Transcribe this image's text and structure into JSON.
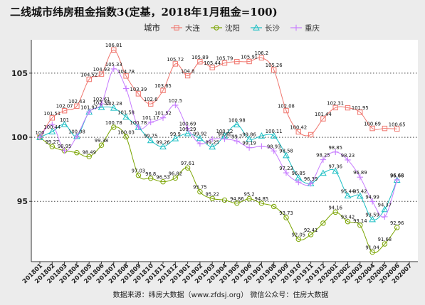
{
  "chart_data": {
    "type": "line",
    "title": "二线城市纬房租金指数3(定基，2018年1月租金=100)",
    "caption": "数据来源：纬房大数据（www.zfdsj.org）    微信公众号：住房大数据",
    "legend_title": "城市",
    "legend_position": "top",
    "grid": true,
    "ylim": [
      90.3,
      107.6
    ],
    "yticks": [
      95,
      100,
      105
    ],
    "x": [
      "201801",
      "201802",
      "201803",
      "201804",
      "201805",
      "201806",
      "201807",
      "201808",
      "201809",
      "201810",
      "201811",
      "201812",
      "201901",
      "201902",
      "201903",
      "201904",
      "201905",
      "201906",
      "201907",
      "201908",
      "201909",
      "201910",
      "201911",
      "201912",
      "202001",
      "202002",
      "202003",
      "202004",
      "202005",
      "202006",
      "202007"
    ],
    "series": [
      {
        "name": "大连",
        "color": "#f0776f",
        "marker": "square",
        "values": [
          100,
          101.51,
          102.07,
          102.43,
          104.52,
          104.93,
          106.81,
          104.78,
          103.39,
          102.6,
          103.65,
          105.72,
          104.8,
          105.89,
          105.44,
          105.79,
          105.9,
          105.91,
          106.2,
          105.26,
          102.08,
          100.42,
          100.2,
          101.44,
          102.31,
          102.3,
          101.95,
          100.69,
          100.69,
          100.65,
          null
        ],
        "labels": [
          "100",
          "101.51",
          "102.07",
          "102.43",
          "104.52",
          "104.93",
          "106.81",
          "104.78",
          "103.39",
          "102.6",
          "103.65",
          "105.72",
          "104.8",
          "105.89",
          "105.44",
          "105.79",
          "",
          "105.91",
          "106.2",
          "105.26",
          "102.08",
          "100.42",
          "",
          "101.44",
          "102.31",
          "",
          "101.95",
          "100.69",
          "",
          "100.65",
          ""
        ]
      },
      {
        "name": "沈阳",
        "color": "#7aa400",
        "marker": "circle",
        "values": [
          100,
          99.27,
          98.95,
          98.8,
          98.49,
          99.38,
          100.78,
          100.03,
          97.03,
          96.8,
          96.53,
          96.82,
          97.61,
          95.75,
          95.22,
          95.1,
          94.86,
          95.2,
          94.85,
          94.6,
          93.73,
          92.05,
          92.41,
          93.3,
          94.16,
          93.42,
          93.14,
          91.04,
          91.68,
          92.96,
          null
        ],
        "labels": [
          "",
          "99.27",
          "",
          "",
          "98.49",
          "99.38",
          "100.78",
          "100.03",
          "97.03",
          "96.8",
          "96.53",
          "96.82",
          "97.61",
          "95.75",
          "95.22",
          "",
          "94.86",
          "95.2",
          "94.85",
          "",
          "93.73",
          "92.05",
          "92.41",
          "",
          "94.16",
          "93.42",
          "93.14",
          "91.04",
          "91.68",
          "92.96",
          ""
        ]
      },
      {
        "name": "长沙",
        "color": "#1bbfc4",
        "marker": "triangle",
        "values": [
          100,
          100.44,
          101,
          100.08,
          101.97,
          102.33,
          102.28,
          101.58,
          100.78,
          99.75,
          99.26,
          99.9,
          100.29,
          99.92,
          99.25,
          100.12,
          100.98,
          99.86,
          100.11,
          100.11,
          98.58,
          96.85,
          96.39,
          97.2,
          97.36,
          95.44,
          95.42,
          93.59,
          94.37,
          96.66,
          null
        ],
        "labels": [
          "",
          "100.44",
          "101",
          "100.08",
          "101.97",
          "102.33",
          "102.28",
          "101.58",
          "100.78",
          "99.75",
          "99.26",
          "99.9",
          "100.29",
          "99.92",
          "99.25",
          "100.12",
          "100.98",
          "99.86",
          "",
          "100.11",
          "98.58",
          "96.85",
          "96.39",
          "",
          "97.36",
          "95.44",
          "95.42",
          "93.59",
          "94.37",
          "96.66",
          ""
        ]
      },
      {
        "name": "重庆",
        "color": "#c77cff",
        "marker": "plus",
        "values": [
          100,
          101,
          98.95,
          100.08,
          101.97,
          102.61,
          105.33,
          103.8,
          100.8,
          101.17,
          101.52,
          102.5,
          100.69,
          99.5,
          99.86,
          99.86,
          99.7,
          99.19,
          99.3,
          98.93,
          97.23,
          96.5,
          96.39,
          98.25,
          98.85,
          98.23,
          96.89,
          94.99,
          93.8,
          96.68,
          null
        ],
        "labels": [
          "",
          "",
          "98.95",
          "",
          "",
          "102.61",
          "105.33",
          "",
          "",
          "101.17",
          "101.52",
          "102.5",
          "100.69",
          "",
          "",
          "99.86",
          "99.7",
          "99.19",
          "",
          "98.93",
          "97.23",
          "",
          "",
          "98.25",
          "98.85",
          "98.23",
          "96.89",
          "94.99",
          "",
          "96.68",
          ""
        ]
      }
    ]
  }
}
